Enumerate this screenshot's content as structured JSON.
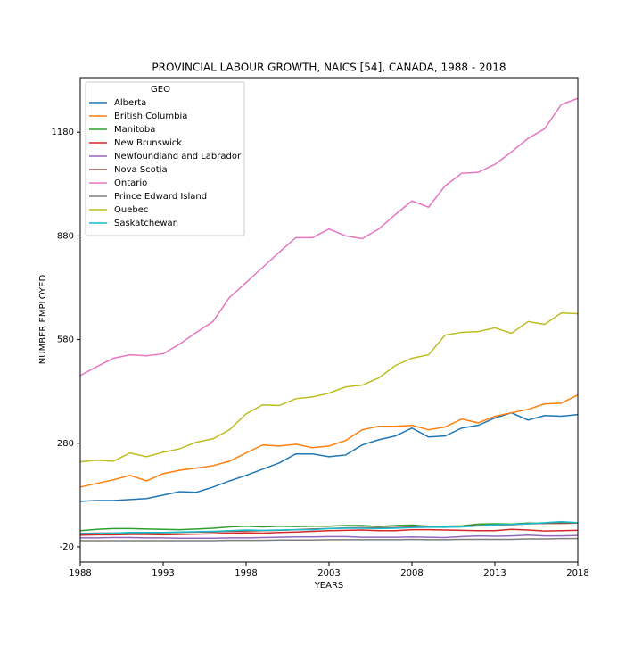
{
  "chart_data": {
    "type": "line",
    "title": "PROVINCIAL LABOUR GROWTH, NAICS [54], CANADA, 1988  - 2018",
    "x_label": "YEARS",
    "y_label": "NUMBER EMPLOYED",
    "legend_title": "GEO",
    "legend": "upper left",
    "x": [
      1988,
      1989,
      1990,
      1991,
      1992,
      1993,
      1994,
      1995,
      1996,
      1997,
      1998,
      1999,
      2000,
      2001,
      2002,
      2003,
      2004,
      2005,
      2006,
      2007,
      2008,
      2009,
      2010,
      2011,
      2012,
      2013,
      2014,
      2015,
      2016,
      2017,
      2018
    ],
    "xlim": [
      1988,
      2018
    ],
    "xticks": [
      1988,
      1993,
      1998,
      2003,
      2008,
      2013,
      2018
    ],
    "ylim": [
      -64,
      1338
    ],
    "yticks": [
      -20,
      280,
      580,
      880,
      1180
    ],
    "series": [
      {
        "name": "Alberta",
        "color": "#1f77b4",
        "values": [
          112,
          114,
          114,
          117,
          120,
          130,
          140,
          138,
          153,
          171,
          187,
          205,
          223,
          249,
          249,
          241,
          246,
          275,
          290,
          301,
          324,
          298,
          301,
          324,
          332,
          353,
          368,
          347,
          360,
          358,
          363
        ]
      },
      {
        "name": "British Columbia",
        "color": "#ff7f0e",
        "values": [
          153,
          164,
          174,
          187,
          171,
          192,
          202,
          208,
          215,
          228,
          252,
          275,
          272,
          277,
          267,
          272,
          288,
          319,
          329,
          329,
          332,
          319,
          327,
          350,
          339,
          358,
          368,
          378,
          394,
          396,
          420
        ]
      },
      {
        "name": "Manitoba",
        "color": "#2ca02c",
        "values": [
          27,
          31,
          33,
          33,
          32,
          31,
          30,
          32,
          34,
          38,
          40,
          38,
          40,
          39,
          40,
          40,
          42,
          42,
          39,
          42,
          43,
          40,
          40,
          41,
          46,
          47,
          46,
          49,
          48,
          52,
          50
        ]
      },
      {
        "name": "New Brunswick",
        "color": "#d62728",
        "values": [
          14,
          15,
          15,
          16,
          16,
          15,
          16,
          17,
          18,
          20,
          21,
          20,
          22,
          23,
          25,
          27,
          28,
          29,
          27,
          27,
          30,
          30,
          29,
          28,
          27,
          27,
          31,
          29,
          26,
          27,
          28
        ]
      },
      {
        "name": "Newfoundland and Labrador",
        "color": "#9467bd",
        "values": [
          6,
          6,
          7,
          7,
          6,
          6,
          5,
          5,
          5,
          6,
          6,
          7,
          8,
          9,
          9,
          10,
          10,
          8,
          8,
          8,
          9,
          8,
          7,
          10,
          12,
          11,
          12,
          14,
          12,
          12,
          13
        ]
      },
      {
        "name": "Nova Scotia",
        "color": "#8c564b",
        "values": [
          19,
          20,
          20,
          21,
          20,
          21,
          22,
          23,
          23,
          25,
          26,
          27,
          28,
          30,
          32,
          33,
          35,
          36,
          35,
          36,
          38,
          38,
          37,
          40,
          42,
          44,
          44,
          47,
          48,
          48,
          49
        ]
      },
      {
        "name": "Ontario",
        "color": "#e377c2",
        "values": [
          476,
          502,
          526,
          536,
          533,
          539,
          567,
          601,
          632,
          702,
          745,
          789,
          833,
          875,
          875,
          900,
          880,
          872,
          900,
          942,
          981,
          963,
          1025,
          1061,
          1064,
          1087,
          1123,
          1162,
          1190,
          1260,
          1278
        ]
      },
      {
        "name": "Prince Edward Island",
        "color": "#7f7f7f",
        "values": [
          -2,
          -2,
          -2,
          -2,
          -2,
          -2,
          -2,
          -2,
          -2,
          -1,
          -1,
          -1,
          0,
          0,
          0,
          1,
          1,
          1,
          1,
          1,
          2,
          1,
          1,
          2,
          2,
          2,
          2,
          3,
          3,
          4,
          4
        ]
      },
      {
        "name": "Quebec",
        "color": "#bcbd22",
        "values": [
          226,
          231,
          228,
          252,
          241,
          254,
          264,
          283,
          293,
          319,
          365,
          391,
          389,
          409,
          414,
          425,
          443,
          448,
          469,
          505,
          526,
          536,
          593,
          601,
          603,
          614,
          598,
          632,
          624,
          657,
          655
        ]
      },
      {
        "name": "Saskatchewan",
        "color": "#17becf",
        "values": [
          18,
          19,
          20,
          22,
          22,
          22,
          23,
          24,
          25,
          27,
          29,
          28,
          29,
          30,
          30,
          33,
          34,
          34,
          33,
          34,
          36,
          37,
          37,
          38,
          41,
          44,
          45,
          47,
          50,
          53,
          50
        ]
      }
    ]
  }
}
